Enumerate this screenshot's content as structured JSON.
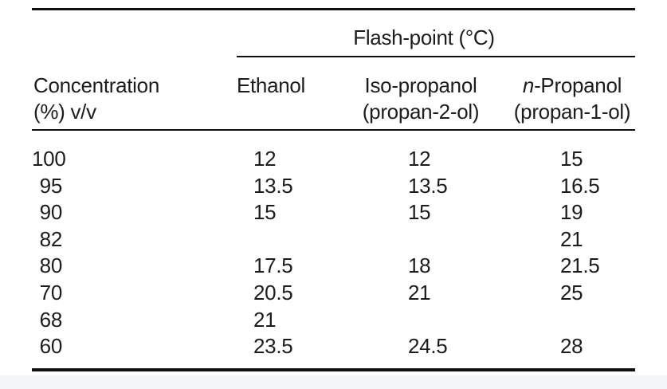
{
  "page": {
    "background_color": "#ffffff",
    "footer_strip_color": "#f4f5f6",
    "ink_color": "#1c1c1c"
  },
  "table": {
    "spanner_header": "Flash-point (°C)",
    "row_header": {
      "line1": "Concentration",
      "line2": "(%) v/v"
    },
    "columns": [
      {
        "line1": "Ethanol",
        "line2": ""
      },
      {
        "line1": "Iso-propanol",
        "line2": "(propan-2-ol)"
      },
      {
        "line1_prefix_italic": "n",
        "line1_rest": "-Propanol",
        "line2": "(propan-1-ol)"
      }
    ],
    "rows": [
      {
        "concentration": "100",
        "ethanol": "12",
        "iso_propanol": "12",
        "n_propanol": "15"
      },
      {
        "concentration": "95",
        "ethanol": "13.5",
        "iso_propanol": "13.5",
        "n_propanol": "16.5"
      },
      {
        "concentration": "90",
        "ethanol": "15",
        "iso_propanol": "15",
        "n_propanol": "19"
      },
      {
        "concentration": "82",
        "ethanol": "",
        "iso_propanol": "",
        "n_propanol": "21"
      },
      {
        "concentration": "80",
        "ethanol": "17.5",
        "iso_propanol": "18",
        "n_propanol": "21.5"
      },
      {
        "concentration": "70",
        "ethanol": "20.5",
        "iso_propanol": "21",
        "n_propanol": "25"
      },
      {
        "concentration": "68",
        "ethanol": "21",
        "iso_propanol": "",
        "n_propanol": ""
      },
      {
        "concentration": "60",
        "ethanol": "23.5",
        "iso_propanol": "24.5",
        "n_propanol": "28"
      }
    ]
  }
}
